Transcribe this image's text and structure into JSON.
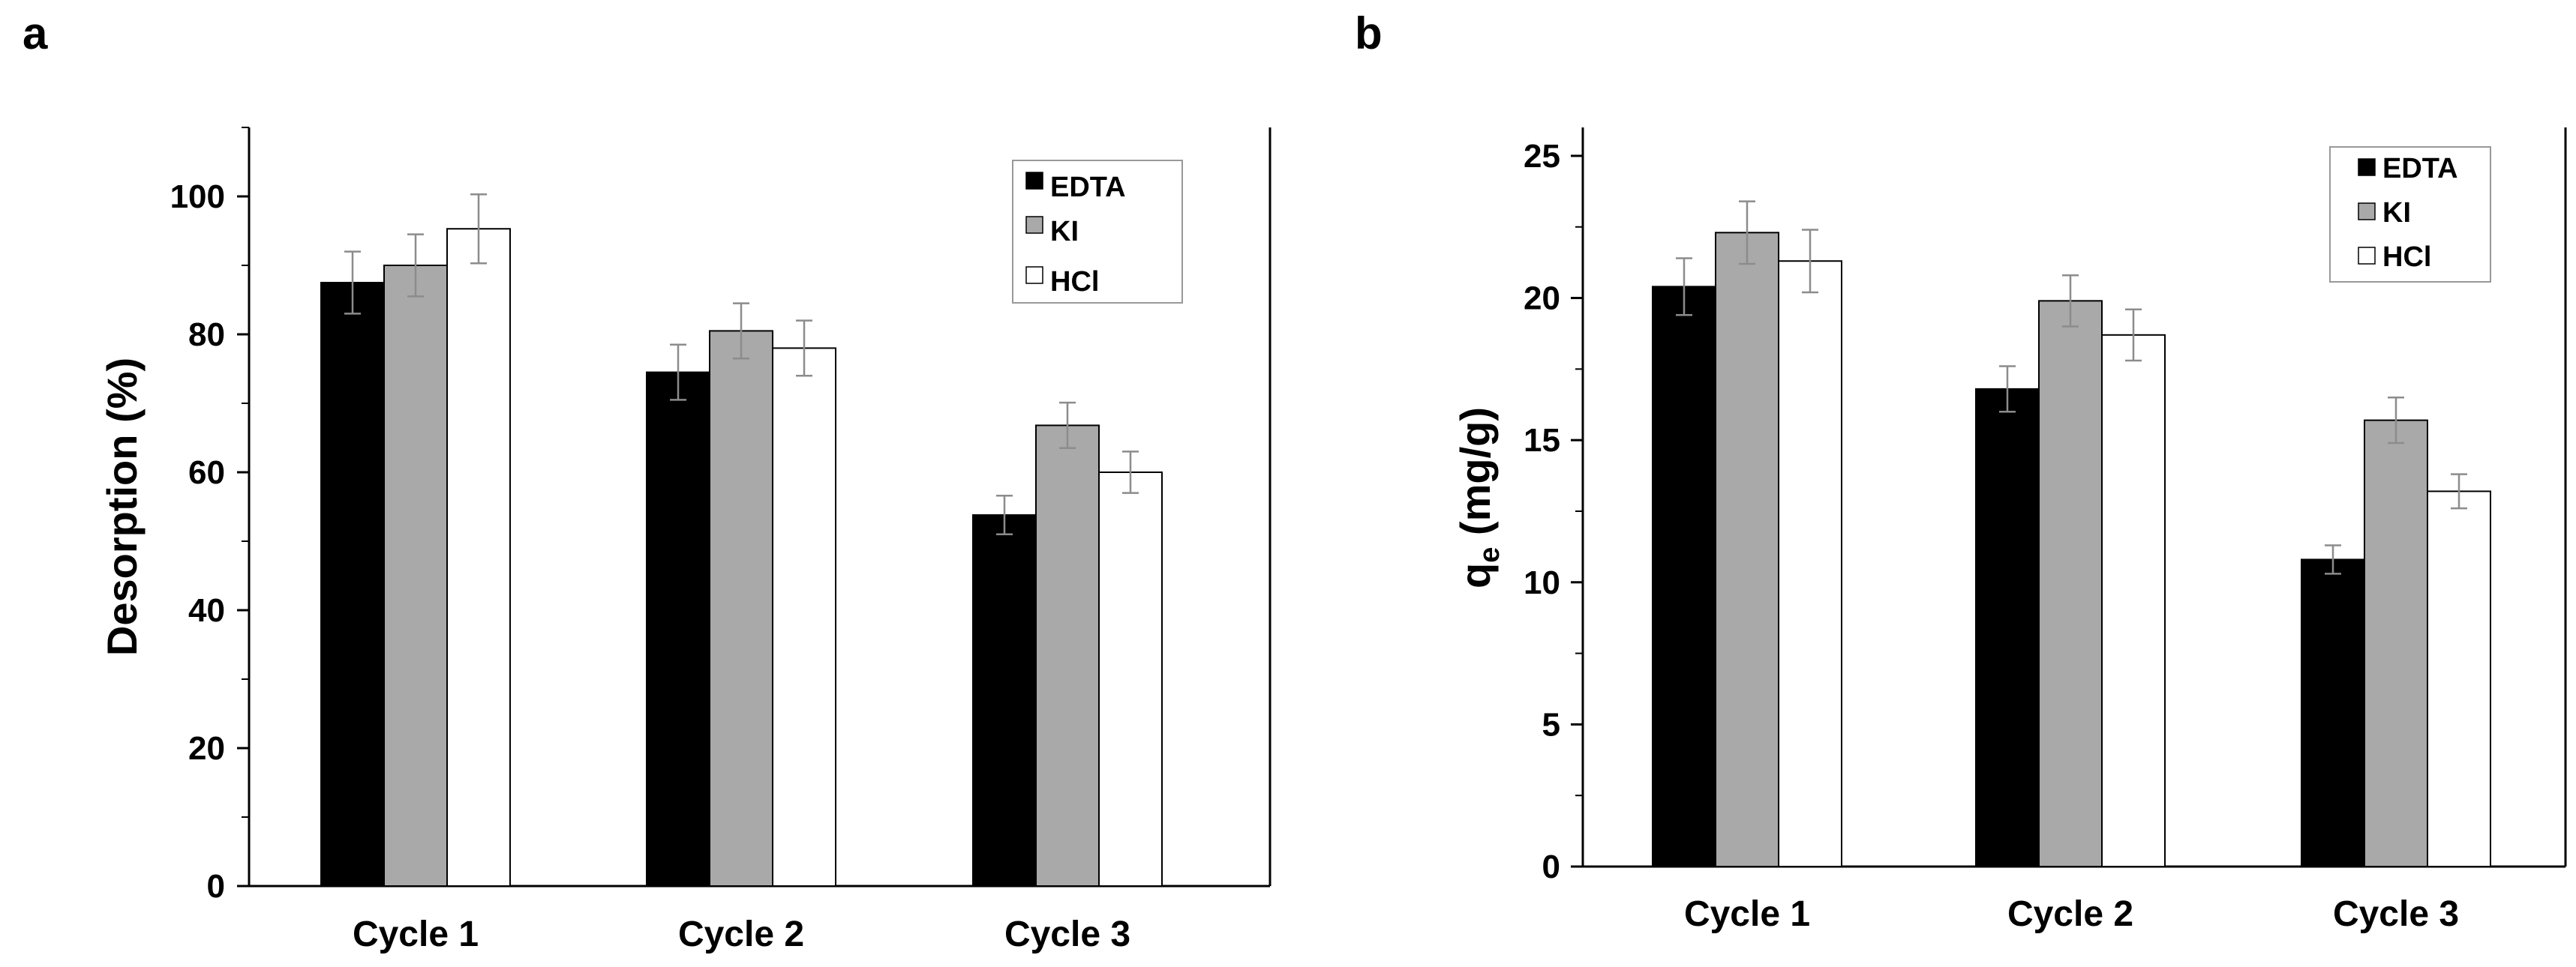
{
  "colors": {
    "EDTA": "#000000",
    "KI": "#a9a9a9",
    "HCl": "#ffffff"
  },
  "chart_data": [
    {
      "panel": "a",
      "type": "bar",
      "categories": [
        "Cycle 1",
        "Cycle 2",
        "Cycle 3"
      ],
      "ylabel": "Desorption (%)",
      "ylim": [
        0,
        110
      ],
      "yticks": [
        0,
        20,
        40,
        60,
        80,
        100
      ],
      "yticklabels": [
        "0",
        "20",
        "40",
        "60",
        "80",
        "100"
      ],
      "legend_position": "top-right",
      "series": [
        {
          "name": "EDTA",
          "values": [
            87.5,
            74.5,
            53.8
          ],
          "errors": [
            4.5,
            4.0,
            2.8
          ]
        },
        {
          "name": "KI",
          "values": [
            90.0,
            80.5,
            66.8
          ],
          "errors": [
            4.5,
            4.0,
            3.3
          ]
        },
        {
          "name": "HCl",
          "values": [
            95.3,
            78.0,
            60.0
          ],
          "errors": [
            5.0,
            4.0,
            3.0
          ]
        }
      ]
    },
    {
      "panel": "b",
      "type": "bar",
      "categories": [
        "Cycle 1",
        "Cycle 2",
        "Cycle 3"
      ],
      "ylabel_main": "q",
      "ylabel_sub": "e",
      "ylabel_rest": " (mg/g)",
      "ylim": [
        0,
        26
      ],
      "yticks": [
        0,
        5,
        10,
        15,
        20,
        25
      ],
      "yticklabels": [
        "0",
        "5",
        "10",
        "15",
        "20",
        "25"
      ],
      "legend_position": "top-right",
      "series": [
        {
          "name": "EDTA",
          "values": [
            20.4,
            16.8,
            10.8
          ],
          "errors": [
            1.0,
            0.8,
            0.5
          ]
        },
        {
          "name": "KI",
          "values": [
            22.3,
            19.9,
            15.7
          ],
          "errors": [
            1.1,
            0.9,
            0.8
          ]
        },
        {
          "name": "HCl",
          "values": [
            21.3,
            18.7,
            13.2
          ],
          "errors": [
            1.1,
            0.9,
            0.6
          ]
        }
      ]
    }
  ]
}
